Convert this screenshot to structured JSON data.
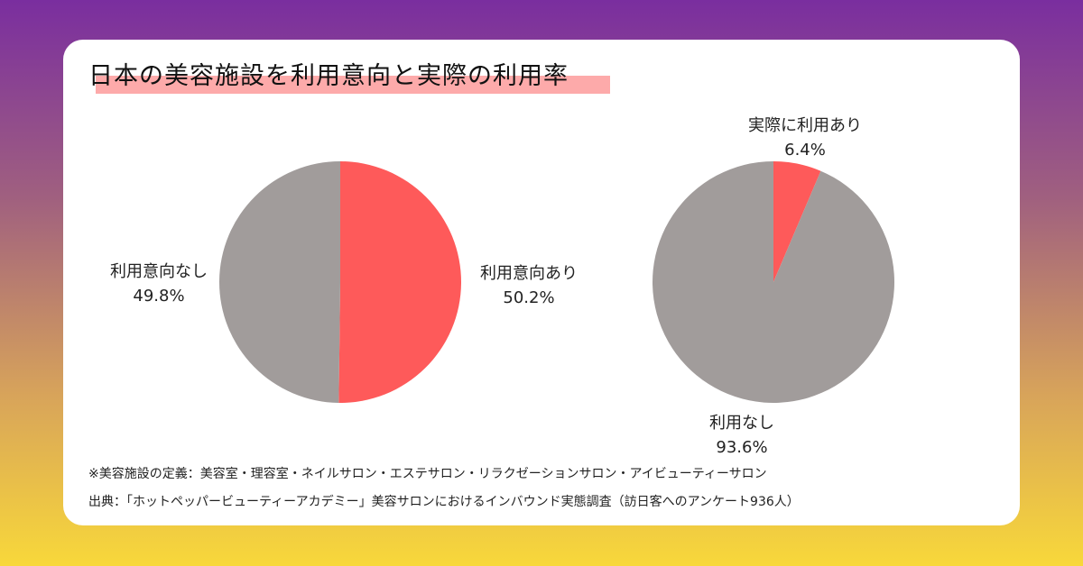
{
  "title": "日本の美容施設を利用意向と実際の利用率",
  "chart_data": [
    {
      "type": "pie",
      "slices": [
        {
          "label": "利用意向あり",
          "value": 50.2,
          "display": "50.2%",
          "color": "#fe5a5a"
        },
        {
          "label": "利用意向なし",
          "value": 49.8,
          "display": "49.8%",
          "color": "#a19c9b"
        }
      ]
    },
    {
      "type": "pie",
      "slices": [
        {
          "label": "実際に利用あり",
          "value": 6.4,
          "display": "6.4%",
          "color": "#fe5a5a"
        },
        {
          "label": "利用なし",
          "value": 93.6,
          "display": "93.6%",
          "color": "#a19c9b"
        }
      ]
    }
  ],
  "notes": {
    "definition": "※美容施設の定義：美容室・理容室・ネイルサロン・エステサロン・リラクゼーションサロン・アイビューティーサロン",
    "source": "出典：「ホットペッパービューティーアカデミー」美容サロンにおけるインバウンド実態調査（訪日客へのアンケート936人）"
  }
}
